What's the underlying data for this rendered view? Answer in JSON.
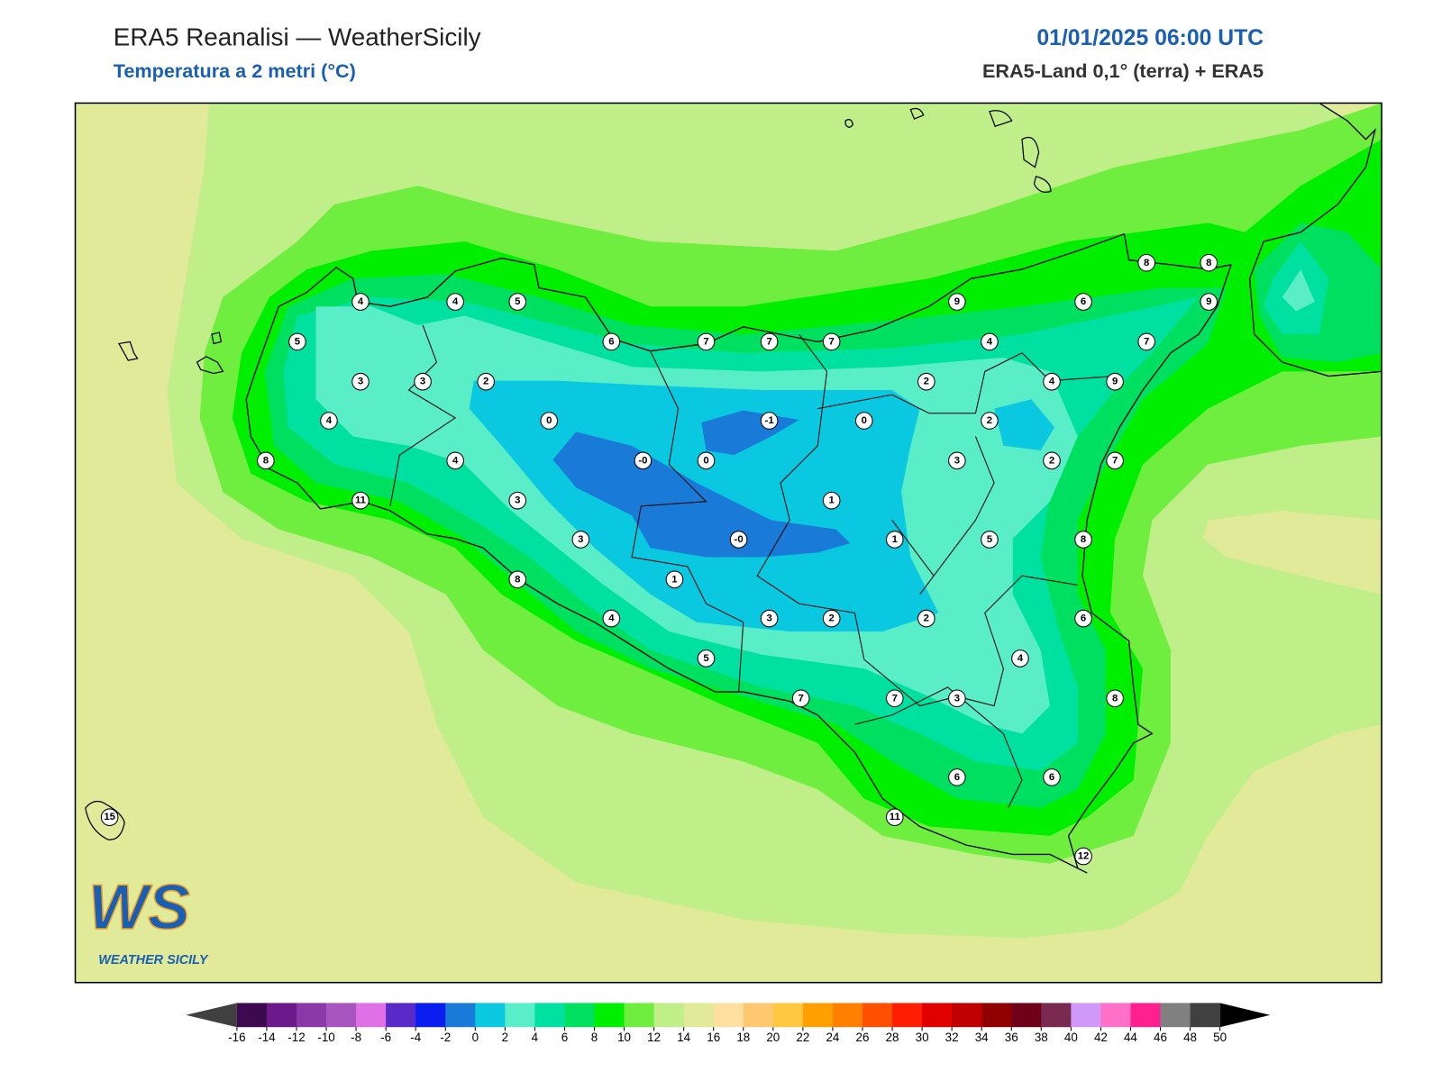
{
  "header": {
    "title": "ERA5 Reanalisi — WeatherSicily",
    "subtitle": "Temperatura a 2 metri (°C)",
    "datetime": "01/01/2025 06:00 UTC",
    "source": "ERA5-Land 0,1° (terra) + ERA5"
  },
  "map": {
    "labels": [
      "4",
      "4",
      "5",
      "5",
      "3",
      "3",
      "2",
      "4",
      "0",
      "8",
      "4",
      "-0",
      "0",
      "-1",
      "6",
      "7",
      "7",
      "7",
      "11",
      "3",
      "3",
      "-0",
      "1",
      "0",
      "2",
      "9",
      "4",
      "2",
      "4",
      "6",
      "8",
      "8",
      "9",
      "7",
      "9",
      "3",
      "2",
      "7",
      "1",
      "5",
      "8",
      "8",
      "1",
      "4",
      "3",
      "2",
      "2",
      "6",
      "5",
      "4",
      "7",
      "7",
      "3",
      "8",
      "6",
      "6",
      "11",
      "12",
      "15"
    ]
  },
  "logo": {
    "text": "WS",
    "caption": "WEATHER SICILY"
  },
  "colorbar": {
    "ticks": [
      -16,
      -14,
      -12,
      -10,
      -8,
      -6,
      -4,
      -2,
      0,
      2,
      4,
      6,
      8,
      10,
      12,
      14,
      16,
      18,
      20,
      22,
      24,
      26,
      28,
      30,
      32,
      34,
      36,
      38,
      40,
      42,
      44,
      46,
      48,
      50
    ],
    "colors": [
      "#3d0a4f",
      "#6a1a8a",
      "#8a3aa8",
      "#a855c0",
      "#e070e8",
      "#5a2ac8",
      "#0a1ef0",
      "#1a7ad8",
      "#0ac8e0",
      "#5aeec8",
      "#00e0a0",
      "#00e060",
      "#00ee00",
      "#70ee40",
      "#c0ee88",
      "#e0ea98",
      "#ffe0a0",
      "#ffc870",
      "#ffc840",
      "#ffa000",
      "#ff8000",
      "#ff5000",
      "#ff1e00",
      "#e00000",
      "#c00000",
      "#900000",
      "#700018",
      "#7a2a50",
      "#d098f8",
      "#ff70c8",
      "#ff2090",
      "#808080",
      "#404040"
    ],
    "under_color": "#404040",
    "over_color": "#000000"
  }
}
